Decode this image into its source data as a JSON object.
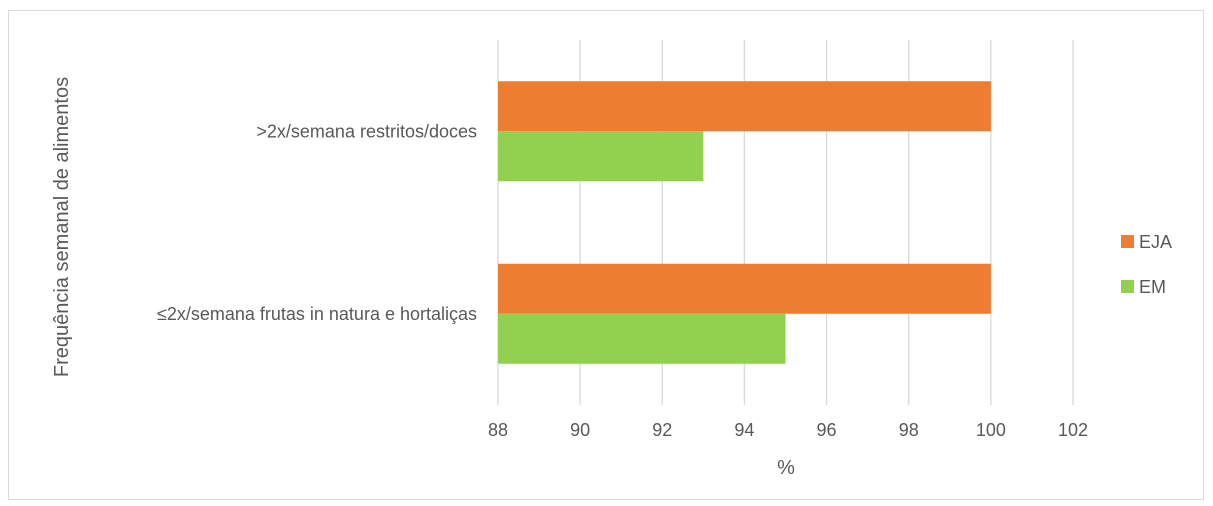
{
  "chart_data": {
    "type": "bar",
    "orientation": "horizontal",
    "categories": [
      ">2x/semana restritos/doces",
      "≤2x/semana frutas in natura e hortaliças"
    ],
    "series": [
      {
        "name": "EJA",
        "values": [
          100,
          100
        ],
        "color": "#ED7D31"
      },
      {
        "name": "EM",
        "values": [
          93,
          95
        ],
        "color": "#92D050"
      }
    ],
    "title": "",
    "xlabel": "%",
    "ylabel": "Frequência semanal de alimentos",
    "xlim": [
      88,
      102
    ],
    "xticks": [
      88,
      90,
      92,
      94,
      96,
      98,
      100,
      102
    ],
    "grid": true,
    "legend": "right"
  }
}
